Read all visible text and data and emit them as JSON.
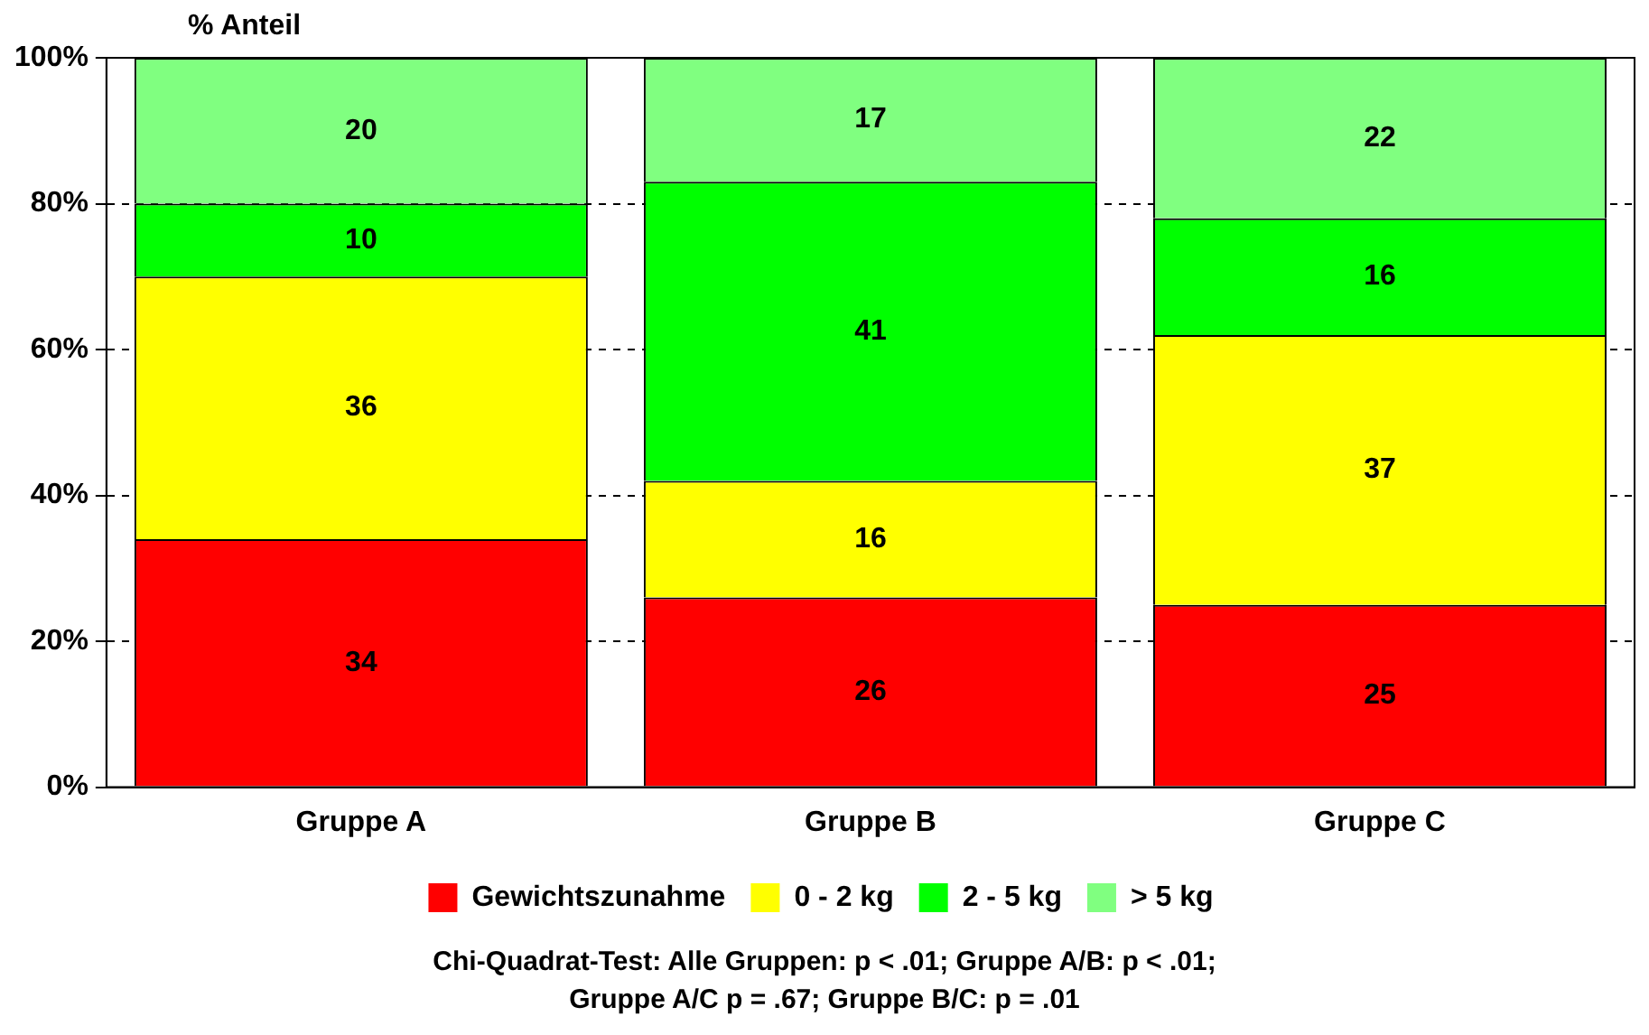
{
  "chart_data": {
    "type": "bar",
    "stacked": true,
    "ylabel": "% Anteil",
    "categories": [
      "Gruppe A",
      "Gruppe B",
      "Gruppe C"
    ],
    "series": [
      {
        "name": "Gewichtszunahme",
        "color": "#ff0000",
        "values": [
          34,
          26,
          25
        ]
      },
      {
        "name": "0 - 2 kg",
        "color": "#ffff00",
        "values": [
          36,
          16,
          37
        ]
      },
      {
        "name": "2 - 5 kg",
        "color": "#00ff00",
        "values": [
          10,
          41,
          16
        ]
      },
      {
        "name": "> 5 kg",
        "color": "#80ff80",
        "values": [
          20,
          17,
          22
        ]
      }
    ],
    "ylim": [
      0,
      100
    ],
    "yticks": [
      {
        "value": 0,
        "label": "0%"
      },
      {
        "value": 20,
        "label": "20%"
      },
      {
        "value": 40,
        "label": "40%"
      },
      {
        "value": 60,
        "label": "60%"
      },
      {
        "value": 80,
        "label": "80%"
      },
      {
        "value": 100,
        "label": "100%"
      }
    ],
    "grid": "y",
    "legend": "bottom",
    "data_labels": true,
    "annotations": [
      "Chi-Quadrat-Test: Alle Gruppen: p < .01; Gruppe A/B: p < .01;",
      "Gruppe A/C p = .67; Gruppe B/C: p = .01"
    ]
  }
}
